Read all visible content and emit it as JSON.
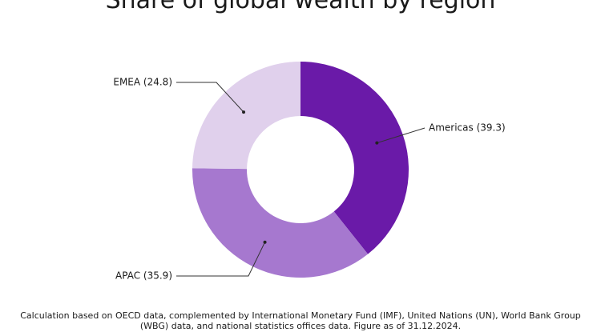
{
  "chart_data": {
    "type": "pie",
    "title": "Share of global wealth by region",
    "values": [
      39.3,
      35.9,
      24.8
    ],
    "value_labels": [
      "Americas (39.3)",
      "APAC (35.9)",
      "EMEA (24.8)"
    ],
    "colors": [
      "#6a1aa8",
      "#a678cf",
      "#e0d0ec"
    ],
    "footnote": [
      "Calculation based on OECD data, complemented by International Monetary Fund (IMF), United Nations (UN), World Bank Group",
      "(WBG) data, and national statistics offices data. Figure as of 31.12.2024."
    ]
  }
}
